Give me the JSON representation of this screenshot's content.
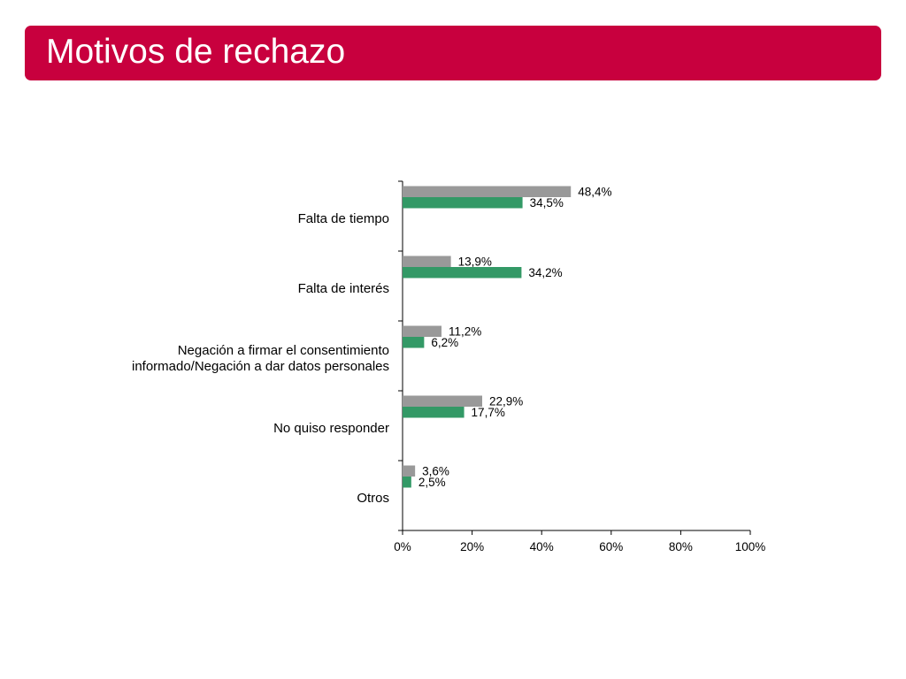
{
  "title": "Motivos de rechazo",
  "colors": {
    "title_bar": "#c8003e",
    "title_text": "#ffffff",
    "series_1": "#999999",
    "series_2": "#339966",
    "axis": "#000000"
  },
  "chart_data": {
    "type": "bar",
    "orientation": "horizontal",
    "title": "",
    "xlabel": "",
    "ylabel": "",
    "xlim": [
      0,
      100
    ],
    "x_ticks": [
      0,
      20,
      40,
      60,
      80,
      100
    ],
    "x_tick_labels": [
      "0%",
      "20%",
      "40%",
      "60%",
      "80%",
      "100%"
    ],
    "grid": false,
    "legend": "none",
    "categories": [
      [
        "Falta de tiempo"
      ],
      [
        "Falta de interés"
      ],
      [
        "Negación a firmar el consentimiento",
        "informado/Negación a dar datos personales"
      ],
      [
        "No quiso responder "
      ],
      [
        "Otros"
      ]
    ],
    "series": [
      {
        "color": "#999999",
        "values": [
          48.4,
          13.9,
          11.2,
          22.9,
          3.6
        ],
        "labels": [
          "48,4%",
          "13,9%",
          "11,2%",
          "22,9%",
          "3,6%"
        ]
      },
      {
        "color": "#339966",
        "values": [
          34.5,
          34.2,
          6.2,
          17.7,
          2.5
        ],
        "labels": [
          "34,5%",
          "34,2%",
          "6,2%",
          "17,7%",
          "2,5%"
        ]
      }
    ]
  }
}
